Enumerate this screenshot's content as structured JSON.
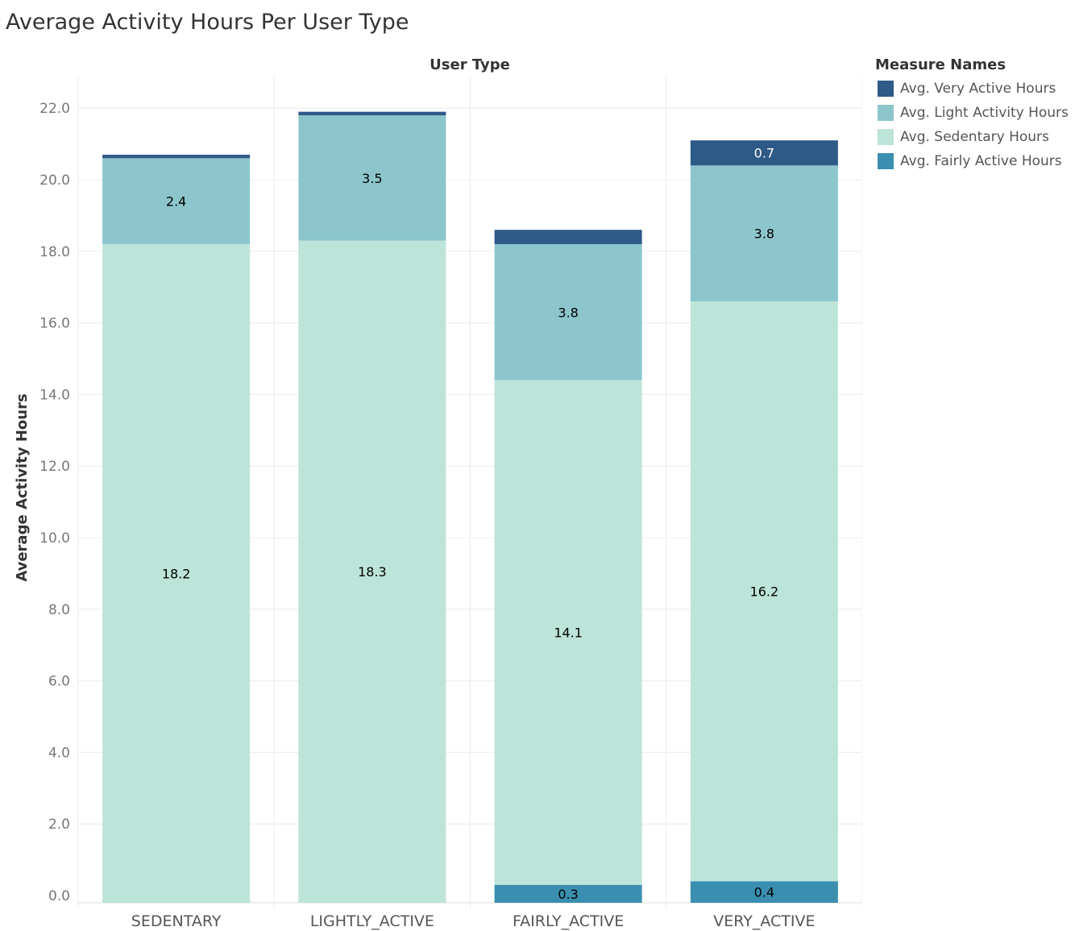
{
  "title": "Average Activity Hours Per User Type",
  "legend": {
    "title": "Measure Names",
    "items": [
      {
        "label": "Avg. Very Active Hours",
        "color": "#2e5a87"
      },
      {
        "label": "Avg. Light Activity Hours",
        "color": "#8cc6cc"
      },
      {
        "label": "Avg. Sedentary Hours",
        "color": "#bde4d9"
      },
      {
        "label": "Avg. Fairly Active Hours",
        "color": "#3a8fb0"
      }
    ]
  },
  "chart_data": {
    "type": "bar",
    "stacked": true,
    "title": "Average Activity Hours Per User Type",
    "xlabel": "User Type",
    "ylabel": "Average Activity Hours",
    "categories": [
      "SEDENTARY",
      "LIGHTLY_ACTIVE",
      "FAIRLY_ACTIVE",
      "VERY_ACTIVE"
    ],
    "ylim": [
      -0.3,
      23.2
    ],
    "yticks": [
      "0.0",
      "2.0",
      "4.0",
      "6.0",
      "8.0",
      "10.0",
      "12.0",
      "14.0",
      "16.0",
      "18.0",
      "20.0",
      "22.0"
    ],
    "grid": true,
    "legend_position": "right",
    "series": [
      {
        "name": "Avg. Fairly Active Hours",
        "color": "#3a8fb0",
        "values": [
          0.0,
          0.0,
          0.3,
          0.4
        ],
        "labels": [
          "",
          "",
          "0.3",
          "0.4"
        ]
      },
      {
        "name": "Avg. Sedentary Hours",
        "color": "#bde4d9",
        "values": [
          18.2,
          18.3,
          14.1,
          16.2
        ],
        "labels": [
          "18.2",
          "18.3",
          "14.1",
          "16.2"
        ]
      },
      {
        "name": "Avg. Light Activity Hours",
        "color": "#8cc6cc",
        "values": [
          2.4,
          3.5,
          3.8,
          3.8
        ],
        "labels": [
          "2.4",
          "3.5",
          "3.8",
          "3.8"
        ]
      },
      {
        "name": "Avg. Very Active Hours",
        "color": "#2e5a87",
        "values": [
          0.1,
          0.1,
          0.4,
          0.7
        ],
        "labels": [
          "",
          "",
          "",
          "0.7"
        ]
      }
    ]
  }
}
